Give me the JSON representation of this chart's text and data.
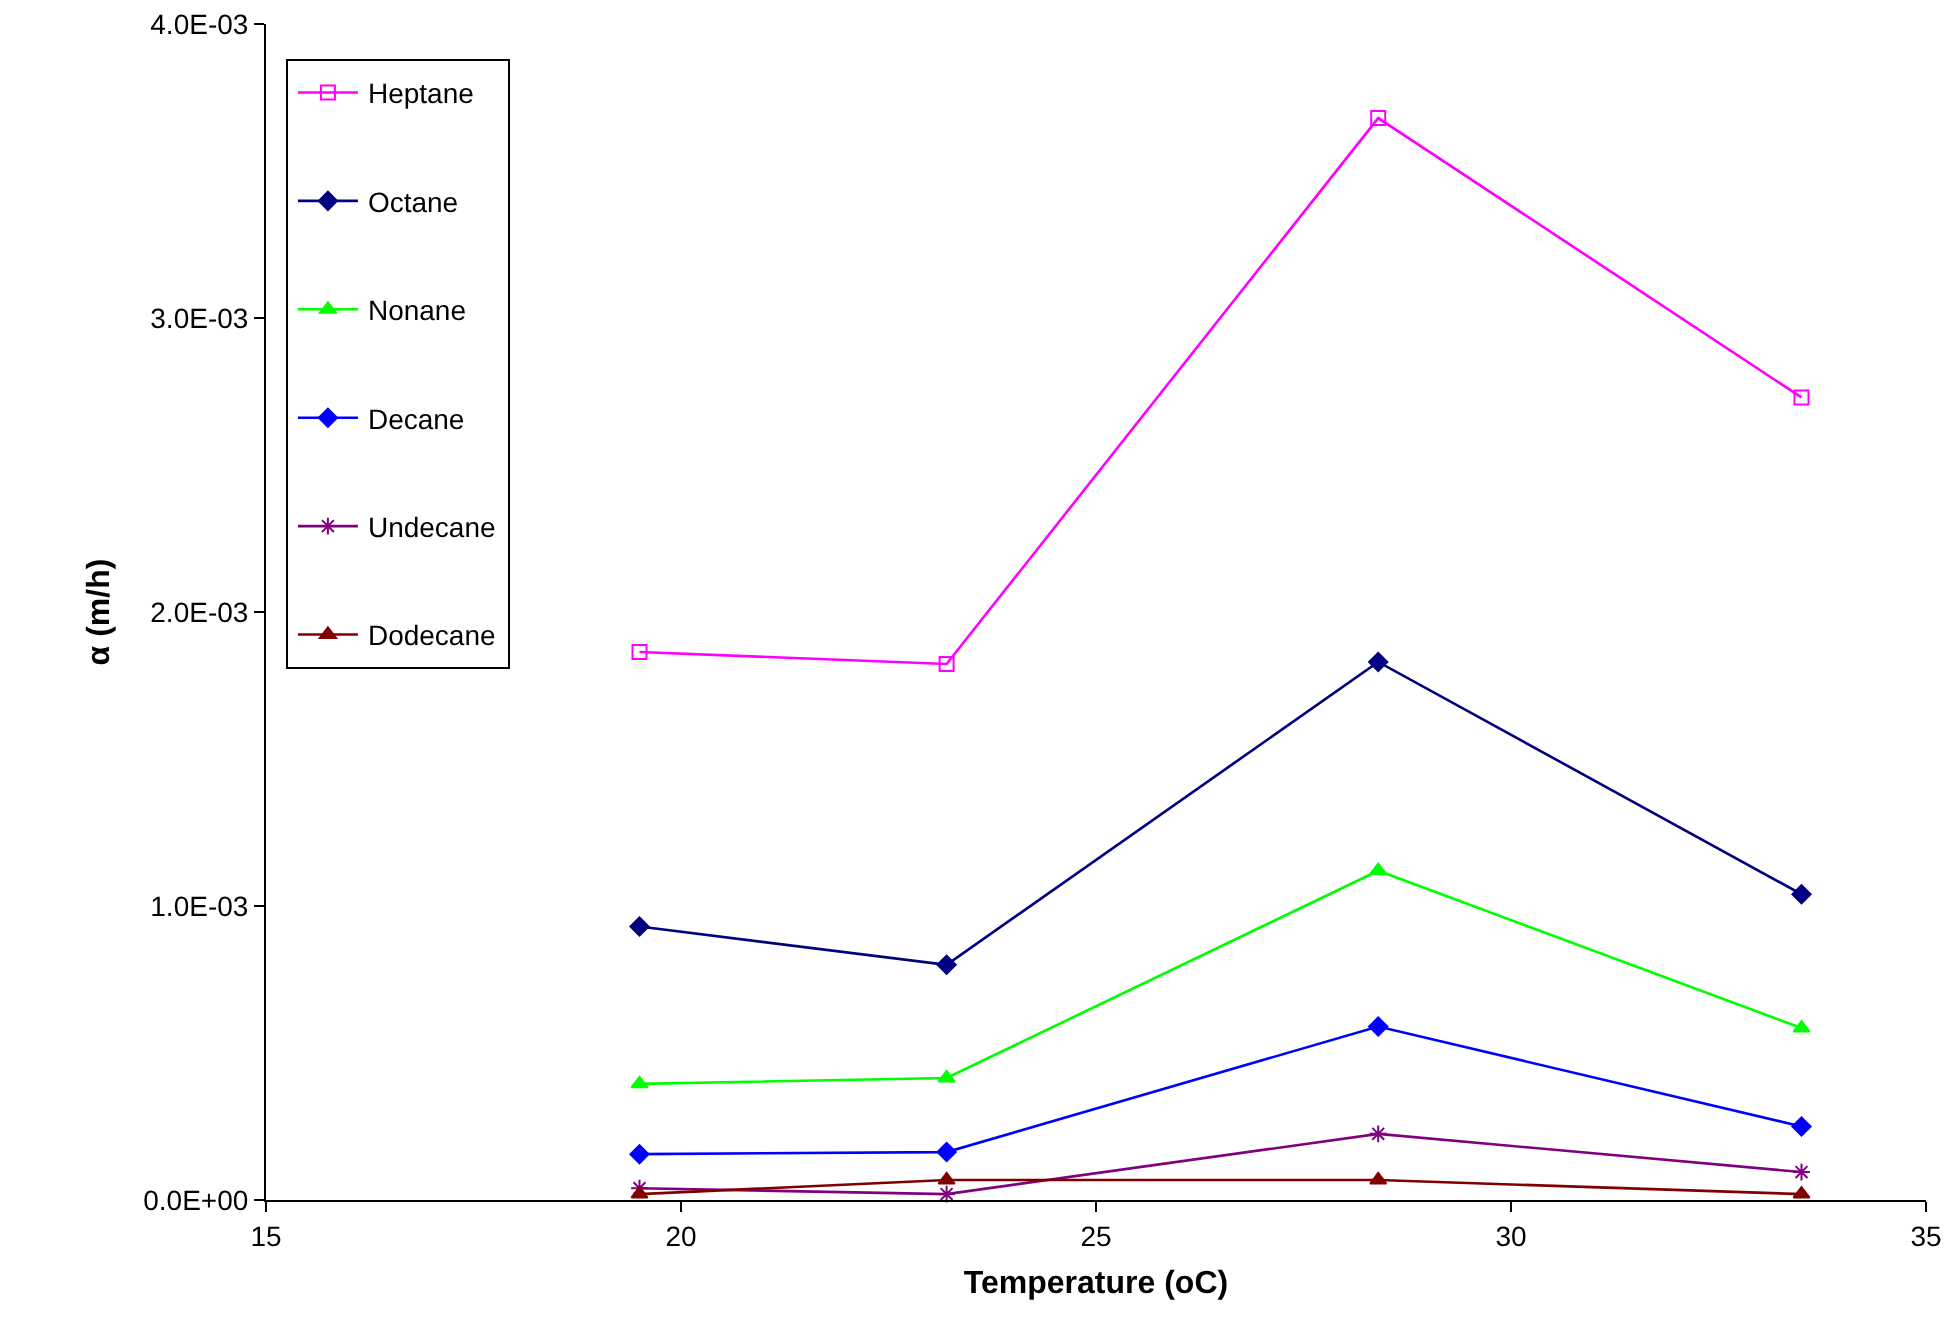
{
  "chart_data": {
    "type": "line",
    "xlabel": "Temperature (oC)",
    "ylabel": "α (m/h)",
    "x": [
      19.5,
      23.2,
      28.4,
      33.5
    ],
    "series": [
      {
        "name": "Heptane",
        "color": "#ff00ff",
        "marker": "square",
        "values": [
          0.001864,
          0.001823,
          0.00368,
          0.00273
        ]
      },
      {
        "name": "Octane",
        "color": "#000080",
        "marker": "diamond",
        "values": [
          0.00093,
          0.0008,
          0.00183,
          0.00104
        ]
      },
      {
        "name": "Nonane",
        "color": "#00ff00",
        "marker": "triangle",
        "values": [
          0.000395,
          0.000415,
          0.00112,
          0.000585
        ]
      },
      {
        "name": "Decane",
        "color": "#0000ff",
        "marker": "diamond",
        "values": [
          0.000156,
          0.000163,
          0.00059,
          0.00025
        ]
      },
      {
        "name": "Undecane",
        "color": "#800080",
        "marker": "cross",
        "values": [
          4e-05,
          2e-05,
          0.000225,
          9.5e-05
        ]
      },
      {
        "name": "Dodecane",
        "color": "#800000",
        "marker": "triangle",
        "values": [
          2e-05,
          6.8e-05,
          6.8e-05,
          2e-05
        ]
      }
    ],
    "xlim": [
      15,
      35
    ],
    "xticks": [
      15,
      20,
      25,
      30,
      35
    ],
    "ylim": [
      0,
      0.004
    ],
    "yticks": [
      {
        "value": 0,
        "label": "0.0E+00"
      },
      {
        "value": 0.001,
        "label": "1.0E-03"
      },
      {
        "value": 0.002,
        "label": "2.0E-03"
      },
      {
        "value": 0.003,
        "label": "3.0E-03"
      },
      {
        "value": 0.004,
        "label": "4.0E-03"
      }
    ],
    "grid": false,
    "legend": "top left",
    "line_style": "solid"
  }
}
